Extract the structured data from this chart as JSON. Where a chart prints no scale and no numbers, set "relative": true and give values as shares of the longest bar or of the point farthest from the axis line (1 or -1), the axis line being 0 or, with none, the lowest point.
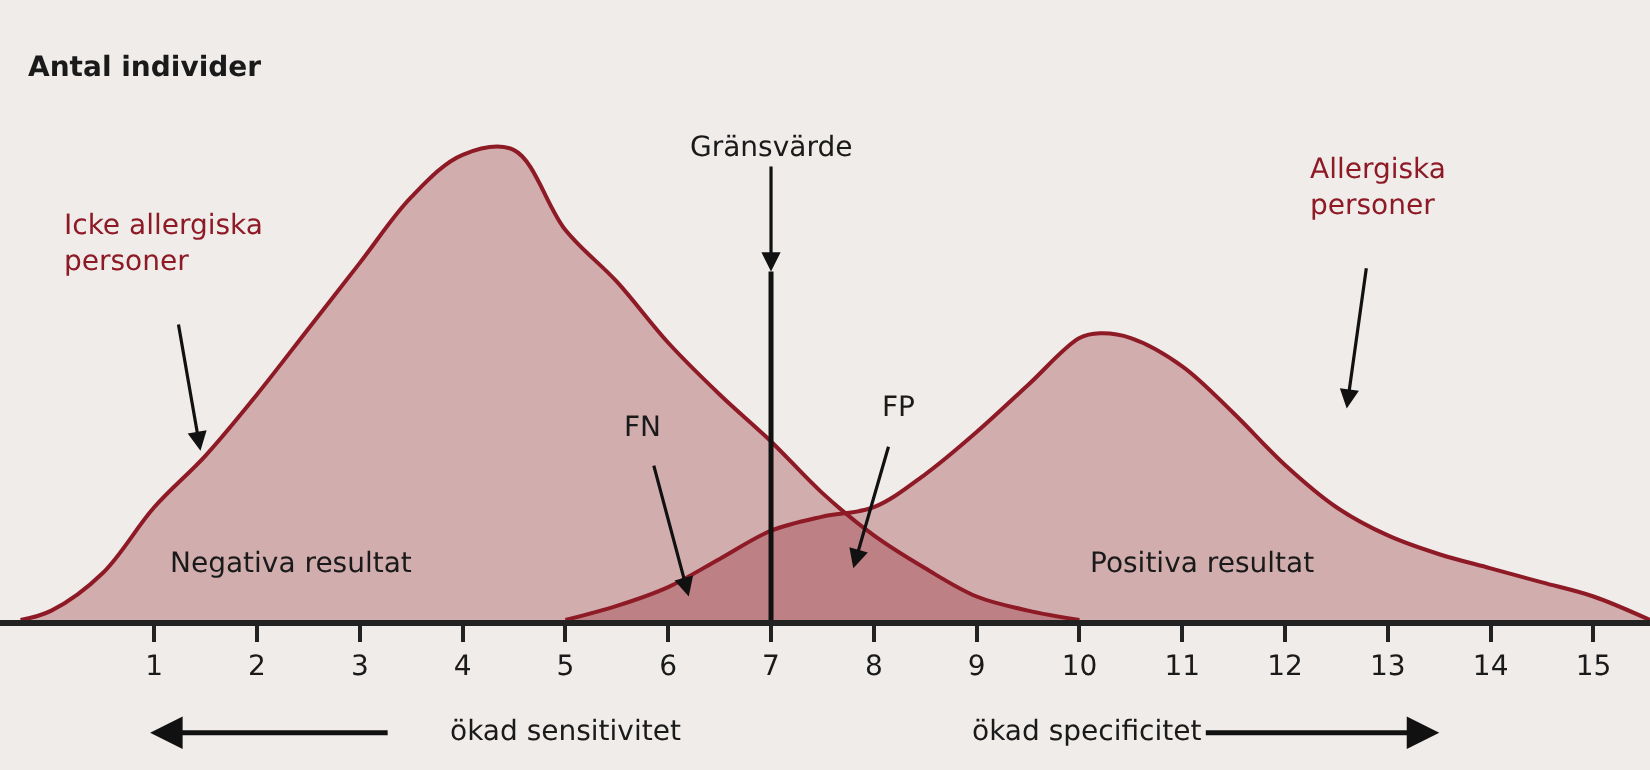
{
  "chart_data": {
    "type": "area",
    "relative": true,
    "ylabel": "Antal individer",
    "xlim": [
      -0.5,
      15.55
    ],
    "xticks": [
      1,
      2,
      3,
      4,
      5,
      6,
      7,
      8,
      9,
      10,
      11,
      12,
      13,
      14,
      15
    ],
    "marker": "none",
    "series": [
      {
        "name": "Icke allergiska\npersoner",
        "color": "#8e1a26",
        "x": [
          -0.3,
          0,
          0.5,
          1,
          1.5,
          2,
          2.5,
          3,
          3.5,
          4,
          4.5,
          5,
          5.5,
          6,
          6.5,
          7,
          7.5,
          8,
          8.5,
          9,
          9.5,
          10
        ],
        "values": [
          0,
          0.02,
          0.1,
          0.24,
          0.35,
          0.48,
          0.62,
          0.76,
          0.9,
          0.99,
          1,
          0.83,
          0.72,
          0.59,
          0.48,
          0.38,
          0.27,
          0.18,
          0.11,
          0.05,
          0.02,
          0
        ]
      },
      {
        "name": "Allergiska\npersoner",
        "color": "#8e1a26",
        "x": [
          5,
          5.5,
          6,
          6.5,
          7,
          7.5,
          8,
          8.5,
          9,
          9.5,
          10,
          10.2,
          10.5,
          11,
          11.5,
          12,
          12.5,
          13,
          13.5,
          14,
          14.5,
          15,
          15.55
        ],
        "values": [
          0,
          0.03,
          0.07,
          0.13,
          0.19,
          0.22,
          0.24,
          0.31,
          0.4,
          0.5,
          0.6,
          0.61,
          0.6,
          0.54,
          0.44,
          0.33,
          0.24,
          0.18,
          0.14,
          0.11,
          0.08,
          0.05,
          0
        ]
      }
    ],
    "ref_lines": [
      {
        "axis": "x",
        "value": 7,
        "label": "Gränsvärde"
      }
    ],
    "annotations": [
      "FN",
      "FP",
      "Negativa resultat",
      "Positiva resultat",
      "ökad sensitivitet",
      "ökad specificitet"
    ]
  }
}
